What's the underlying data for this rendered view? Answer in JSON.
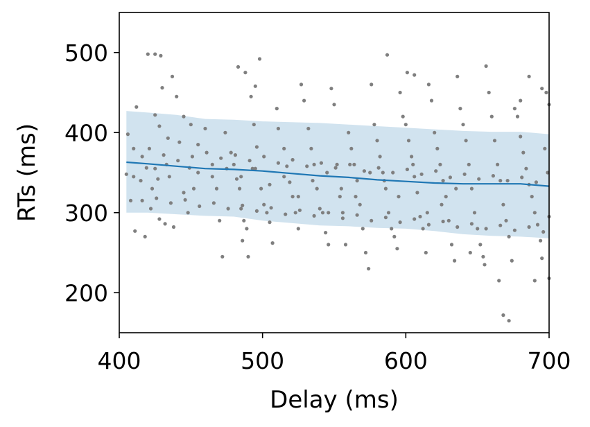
{
  "chart_data": {
    "type": "scatter",
    "title": "",
    "xlabel": "Delay (ms)",
    "ylabel": "RTs (ms)",
    "xlim": [
      400,
      700
    ],
    "ylim": [
      150,
      550
    ],
    "xticks": [
      400,
      500,
      600,
      700
    ],
    "yticks": [
      200,
      300,
      400,
      500
    ],
    "grid": false,
    "legend": "none",
    "colors": {
      "points": "#7f7f7f",
      "line": "#1f77b4",
      "band": "#c6dceb"
    },
    "trend": {
      "x": [
        405,
        420,
        440,
        460,
        480,
        500,
        520,
        540,
        560,
        580,
        600,
        620,
        640,
        660,
        680,
        700
      ],
      "y": [
        363,
        361,
        358,
        355,
        354,
        352,
        349,
        346,
        344,
        341,
        339,
        337,
        336,
        336,
        336,
        333
      ]
    },
    "band": {
      "x": [
        405,
        420,
        440,
        460,
        480,
        500,
        520,
        540,
        560,
        580,
        600,
        620,
        640,
        660,
        680,
        700
      ],
      "upper": [
        427,
        425,
        422,
        417,
        416,
        414,
        413,
        412,
        410,
        408,
        406,
        404,
        402,
        401,
        401,
        398
      ],
      "lower": [
        300,
        300,
        298,
        296,
        295,
        290,
        287,
        284,
        283,
        281,
        280,
        277,
        273,
        271,
        270,
        268
      ]
    },
    "points": [
      [
        420,
        498
      ],
      [
        425,
        498
      ],
      [
        429,
        496
      ],
      [
        412,
        432
      ],
      [
        425,
        422
      ],
      [
        430,
        456
      ],
      [
        437,
        470
      ],
      [
        428,
        408
      ],
      [
        434,
        393
      ],
      [
        405,
        348
      ],
      [
        406,
        398
      ],
      [
        410,
        380
      ],
      [
        416,
        370
      ],
      [
        419,
        356
      ],
      [
        408,
        315
      ],
      [
        411,
        277
      ],
      [
        418,
        270
      ],
      [
        422,
        305
      ],
      [
        428,
        292
      ],
      [
        432,
        286
      ],
      [
        423,
        330
      ],
      [
        427,
        342
      ],
      [
        433,
        360
      ],
      [
        440,
        445
      ],
      [
        438,
        282
      ],
      [
        445,
        420
      ],
      [
        442,
        388
      ],
      [
        450,
        410
      ],
      [
        455,
        385
      ],
      [
        449,
        356
      ],
      [
        452,
        330
      ],
      [
        448,
        300
      ],
      [
        460,
        405
      ],
      [
        465,
        360
      ],
      [
        468,
        330
      ],
      [
        470,
        290
      ],
      [
        472,
        245
      ],
      [
        474,
        400
      ],
      [
        478,
        375
      ],
      [
        480,
        360
      ],
      [
        482,
        342
      ],
      [
        484,
        330
      ],
      [
        485,
        305
      ],
      [
        487,
        290
      ],
      [
        486,
        265
      ],
      [
        489,
        280
      ],
      [
        490,
        245
      ],
      [
        483,
        482
      ],
      [
        488,
        475
      ],
      [
        492,
        445
      ],
      [
        495,
        458
      ],
      [
        498,
        492
      ],
      [
        494,
        410
      ],
      [
        496,
        382
      ],
      [
        493,
        355
      ],
      [
        499,
        330
      ],
      [
        501,
        310
      ],
      [
        503,
        300
      ],
      [
        505,
        288
      ],
      [
        507,
        262
      ],
      [
        510,
        430
      ],
      [
        511,
        405
      ],
      [
        515,
        380
      ],
      [
        517,
        358
      ],
      [
        519,
        338
      ],
      [
        521,
        320
      ],
      [
        523,
        300
      ],
      [
        525,
        280
      ],
      [
        527,
        460
      ],
      [
        529,
        440
      ],
      [
        532,
        405
      ],
      [
        534,
        380
      ],
      [
        536,
        360
      ],
      [
        538,
        330
      ],
      [
        540,
        305
      ],
      [
        542,
        300
      ],
      [
        544,
        275
      ],
      [
        546,
        260
      ],
      [
        548,
        455
      ],
      [
        550,
        435
      ],
      [
        552,
        360
      ],
      [
        554,
        320
      ],
      [
        556,
        300
      ],
      [
        558,
        260
      ],
      [
        560,
        400
      ],
      [
        562,
        380
      ],
      [
        564,
        360
      ],
      [
        566,
        340
      ],
      [
        568,
        310
      ],
      [
        570,
        280
      ],
      [
        572,
        250
      ],
      [
        574,
        230
      ],
      [
        576,
        460
      ],
      [
        578,
        410
      ],
      [
        580,
        390
      ],
      [
        582,
        370
      ],
      [
        584,
        350
      ],
      [
        586,
        330
      ],
      [
        588,
        300
      ],
      [
        590,
        280
      ],
      [
        592,
        270
      ],
      [
        594,
        255
      ],
      [
        587,
        497
      ],
      [
        596,
        450
      ],
      [
        598,
        420
      ],
      [
        600,
        410
      ],
      [
        602,
        390
      ],
      [
        604,
        370
      ],
      [
        606,
        345
      ],
      [
        608,
        325
      ],
      [
        610,
        295
      ],
      [
        612,
        280
      ],
      [
        614,
        250
      ],
      [
        601,
        475
      ],
      [
        606,
        472
      ],
      [
        616,
        460
      ],
      [
        618,
        440
      ],
      [
        620,
        400
      ],
      [
        622,
        380
      ],
      [
        624,
        360
      ],
      [
        626,
        340
      ],
      [
        628,
        320
      ],
      [
        630,
        290
      ],
      [
        632,
        260
      ],
      [
        634,
        240
      ],
      [
        636,
        470
      ],
      [
        638,
        430
      ],
      [
        640,
        410
      ],
      [
        642,
        390
      ],
      [
        644,
        360
      ],
      [
        646,
        330
      ],
      [
        648,
        300
      ],
      [
        650,
        280
      ],
      [
        652,
        260
      ],
      [
        654,
        245
      ],
      [
        656,
        483
      ],
      [
        658,
        450
      ],
      [
        660,
        420
      ],
      [
        662,
        390
      ],
      [
        664,
        360
      ],
      [
        666,
        340
      ],
      [
        668,
        310
      ],
      [
        670,
        290
      ],
      [
        672,
        270
      ],
      [
        674,
        240
      ],
      [
        676,
        430
      ],
      [
        678,
        420
      ],
      [
        680,
        395
      ],
      [
        682,
        375
      ],
      [
        684,
        355
      ],
      [
        686,
        335
      ],
      [
        688,
        320
      ],
      [
        690,
        300
      ],
      [
        692,
        285
      ],
      [
        694,
        265
      ],
      [
        695,
        455
      ],
      [
        698,
        450
      ],
      [
        700,
        435
      ],
      [
        697,
        380
      ],
      [
        699,
        350
      ],
      [
        700,
        295
      ],
      [
        700,
        218
      ],
      [
        695,
        243
      ],
      [
        690,
        215
      ],
      [
        686,
        470
      ],
      [
        680,
        440
      ],
      [
        672,
        165
      ],
      [
        668,
        172
      ],
      [
        665,
        215
      ],
      [
        655,
        235
      ],
      [
        645,
        250
      ],
      [
        635,
        330
      ],
      [
        625,
        310
      ],
      [
        615,
        300
      ],
      [
        605,
        360
      ],
      [
        595,
        320
      ],
      [
        585,
        340
      ],
      [
        575,
        350
      ],
      [
        565,
        320
      ],
      [
        555,
        330
      ],
      [
        545,
        350
      ],
      [
        535,
        340
      ],
      [
        525,
        320
      ],
      [
        515,
        345
      ],
      [
        505,
        335
      ],
      [
        495,
        355
      ],
      [
        485,
        345
      ],
      [
        475,
        355
      ],
      [
        465,
        345
      ],
      [
        455,
        350
      ],
      [
        445,
        325
      ],
      [
        435,
        345
      ],
      [
        425,
        355
      ],
      [
        415,
        340
      ],
      [
        410,
        345
      ],
      [
        421,
        380
      ],
      [
        431,
        372
      ],
      [
        441,
        365
      ],
      [
        451,
        370
      ],
      [
        461,
        375
      ],
      [
        471,
        368
      ],
      [
        481,
        372
      ],
      [
        491,
        365
      ],
      [
        501,
        370
      ],
      [
        511,
        362
      ],
      [
        521,
        366
      ],
      [
        531,
        358
      ],
      [
        541,
        362
      ],
      [
        551,
        356
      ],
      [
        561,
        360
      ],
      [
        571,
        352
      ],
      [
        581,
        356
      ],
      [
        591,
        350
      ],
      [
        601,
        354
      ],
      [
        611,
        348
      ],
      [
        621,
        352
      ],
      [
        631,
        344
      ],
      [
        641,
        348
      ],
      [
        651,
        342
      ],
      [
        661,
        346
      ],
      [
        671,
        340
      ],
      [
        681,
        344
      ],
      [
        691,
        338
      ],
      [
        416,
        315
      ],
      [
        426,
        318
      ],
      [
        436,
        312
      ],
      [
        446,
        316
      ],
      [
        456,
        308
      ],
      [
        466,
        312
      ],
      [
        476,
        305
      ],
      [
        486,
        309
      ],
      [
        496,
        302
      ],
      [
        506,
        306
      ],
      [
        516,
        298
      ],
      [
        526,
        303
      ],
      [
        536,
        296
      ],
      [
        546,
        300
      ],
      [
        556,
        293
      ],
      [
        566,
        297
      ],
      [
        576,
        290
      ],
      [
        586,
        294
      ],
      [
        596,
        288
      ],
      [
        606,
        292
      ],
      [
        616,
        285
      ],
      [
        626,
        289
      ],
      [
        636,
        282
      ],
      [
        646,
        286
      ],
      [
        656,
        280
      ],
      [
        666,
        284
      ],
      [
        676,
        278
      ],
      [
        686,
        282
      ],
      [
        696,
        276
      ]
    ]
  }
}
